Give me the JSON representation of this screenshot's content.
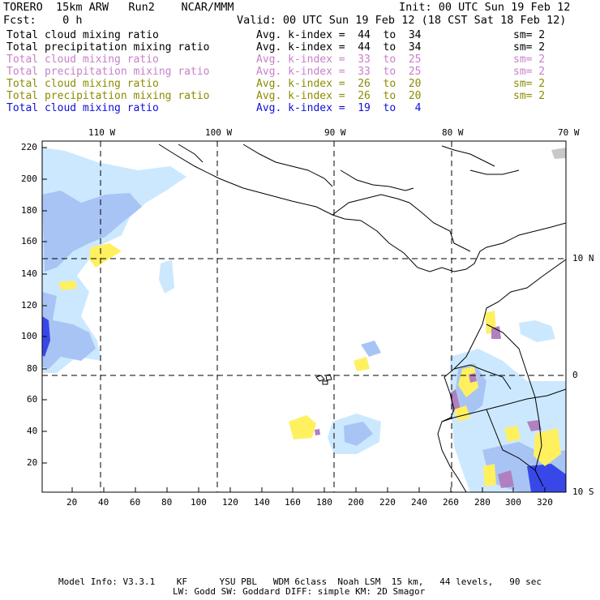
{
  "header": {
    "model": "TORERO  15km ARW   Run2    NCAR/MMM",
    "init": "Init: 00 UTC Sun 19 Feb 12",
    "fcst": "Fcst:    0 h",
    "valid": "Valid: 00 UTC Sun 19 Feb 12 (18 CST Sat 18 Feb 12)"
  },
  "legend": [
    {
      "field": "Total cloud mixing ratio",
      "kindex": "Avg. k-index =  44  to  34",
      "sm": "sm= 2",
      "color": "#000000"
    },
    {
      "field": "Total precipitation mixing ratio",
      "kindex": "Avg. k-index =  44  to  34",
      "sm": "sm= 2",
      "color": "#000000"
    },
    {
      "field": "Total cloud mixing ratio",
      "kindex": "Avg. k-index =  33  to  25",
      "sm": "sm= 2",
      "color": "#c880c8"
    },
    {
      "field": "Total precipitation mixing ratio",
      "kindex": "Avg. k-index =  33  to  25",
      "sm": "sm= 2",
      "color": "#c880c8"
    },
    {
      "field": "Total cloud mixing ratio",
      "kindex": "Avg. k-index =  26  to  20",
      "sm": "sm= 2",
      "color": "#8c8c00"
    },
    {
      "field": "Total precipitation mixing ratio",
      "kindex": "Avg. k-index =  26  to  20",
      "sm": "sm= 2",
      "color": "#8c8c00"
    },
    {
      "field": "Total cloud mixing ratio",
      "kindex": "Avg. k-index =  19  to   4",
      "sm": "sm= 2",
      "color": "#1010d8"
    }
  ],
  "axes": {
    "top_labels": [
      "110 W",
      "100 W",
      "90 W",
      "80 W",
      "70 W"
    ],
    "right_labels": [
      "10 N",
      "0",
      "10 S"
    ],
    "left_ticks": [
      "220",
      "200",
      "180",
      "160",
      "140",
      "120",
      "100",
      "80",
      "60",
      "40",
      "20"
    ],
    "bottom_ticks": [
      "20",
      "40",
      "60",
      "80",
      "100",
      "120",
      "140",
      "160",
      "180",
      "200",
      "220",
      "240",
      "260",
      "280",
      "300",
      "320"
    ]
  },
  "footer": {
    "line1": "Model Info: V3.3.1    KF      YSU PBL   WDM 6class  Noah LSM  15 km,   44 levels,   90 sec",
    "line2": "LW: Godd SW: Goddard DIFF: simple KM: 2D Smagor"
  },
  "colors": {
    "cloud_light": "#cce8ff",
    "cloud_mid": "#a8c4f4",
    "cloud_dark": "#3848e8",
    "yellow": "#fff060",
    "purple": "#b080c0"
  }
}
